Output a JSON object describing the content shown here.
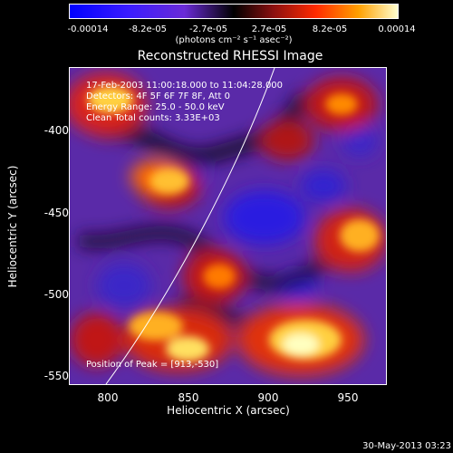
{
  "colorbar": {
    "ticks": [
      "-0.00014",
      "-8.2e-05",
      "-2.7e-05",
      "2.7e-05",
      "8.2e-05",
      "0.00014"
    ],
    "units": "(photons cm⁻² s⁻¹ asec⁻²)"
  },
  "title": "Reconstructed RHESSI Image",
  "annotations": {
    "time_range": "17-Feb-2003 11:00:18.000 to 11:04:28.000",
    "detectors": "Detectors: 4F 5F 6F 7F 8F, Att 0",
    "energy_range": "Energy Range: 25.0 - 50.0 keV",
    "clean": "Clean    Total counts: 3.33E+03",
    "peak": "Position of Peak = [913,-530]"
  },
  "axes": {
    "xlabel": "Heliocentric X (arcsec)",
    "ylabel": "Heliocentric Y (arcsec)",
    "xticks": [
      "800",
      "850",
      "900",
      "950"
    ],
    "yticks": [
      "-400",
      "-450",
      "-500",
      "-550"
    ]
  },
  "timestamp": "30-May-2013 03:23"
}
